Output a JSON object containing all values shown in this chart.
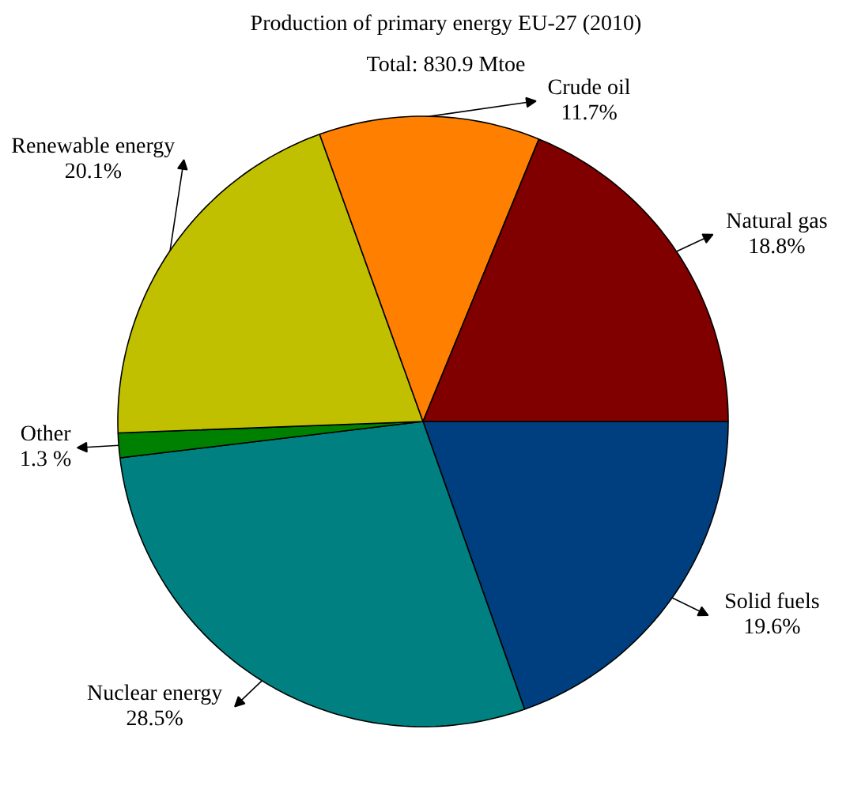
{
  "chart_data": {
    "type": "pie",
    "title": "Production of primary energy EU-27 (2010)",
    "subtitle": "Total: 830.9 Mtoe",
    "categories": [
      "Solid fuels",
      "Nuclear energy",
      "Other",
      "Renewable energy",
      "Crude oil",
      "Natural gas"
    ],
    "values": [
      19.6,
      28.5,
      1.3,
      20.1,
      11.7,
      18.8
    ],
    "value_labels": [
      "19.6%",
      "28.5%",
      "1.3 %",
      "20.1%",
      "11.7%",
      "18.8%"
    ],
    "colors": [
      "#003f7f",
      "#008080",
      "#008000",
      "#c0c000",
      "#ff8000",
      "#800000"
    ]
  }
}
